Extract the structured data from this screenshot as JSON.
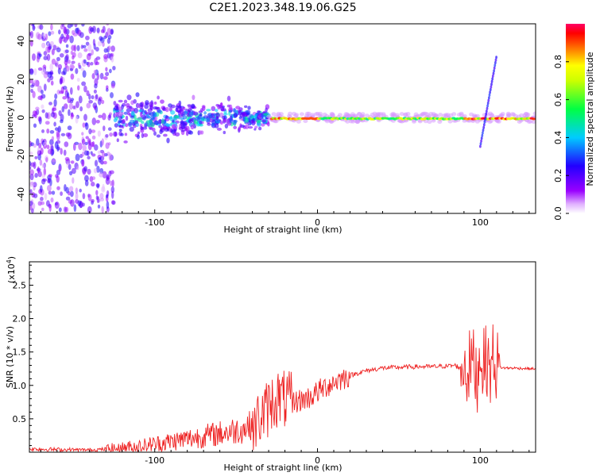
{
  "figure": {
    "title": "C2E1.2023.348.19.06.G25"
  },
  "chart_data": [
    {
      "type": "heatmap",
      "title": "C2E1.2023.348.19.06.G25",
      "xlabel": "Height of straight line (km)",
      "ylabel": "Frequency (Hz)",
      "xlim": [
        -177,
        134
      ],
      "ylim": [
        -50,
        49
      ],
      "xticks": [
        -100,
        0,
        100
      ],
      "yticks": [
        -40,
        -20,
        0,
        20,
        40
      ],
      "colorbar": {
        "label": "Normalized spectral amplitude",
        "range": [
          0,
          1
        ],
        "ticks": [
          0.0,
          0.2,
          0.4,
          0.6,
          0.8
        ],
        "colormap": [
          "#ffffff",
          "#9900ff",
          "#3300ff",
          "#00ccff",
          "#00ff66",
          "#ffff00",
          "#ff6600",
          "#ff0000",
          "#ff0066"
        ]
      },
      "features": [
        {
          "description_x_range": [
            -177,
            -125
          ],
          "spread_hz": 49
        },
        {
          "description_x_range": [
            -125,
            -30
          ],
          "spread_hz": 10
        },
        {
          "description_x_range": [
            -30,
            134
          ],
          "center_hz": 0,
          "peak_amplitude": 1.0
        },
        {
          "chirp_x": [
            100,
            110
          ],
          "chirp_y": [
            -15,
            32
          ]
        }
      ]
    },
    {
      "type": "line",
      "xlabel": "Height of straight line (km)",
      "ylabel": "SNR (10 * v/v)",
      "yscale_label": "(x10",
      "yscale_exp": "4",
      "y_multiplier": 10000,
      "xlim": [
        -177,
        134
      ],
      "ylim": [
        0,
        2.85
      ],
      "xticks": [
        -100,
        0,
        100
      ],
      "yticks": [
        0.5,
        1.0,
        1.5,
        2.0,
        2.5
      ],
      "series": [
        {
          "color": "#ee2222",
          "x": [
            -177,
            -160,
            -140,
            -120,
            -100,
            -80,
            -60,
            -45,
            -38,
            -32,
            -28,
            -24,
            -20,
            -15,
            -10,
            -5,
            0,
            5,
            10,
            20,
            30,
            40,
            50,
            60,
            70,
            80,
            85,
            88,
            90,
            92,
            95,
            98,
            100,
            102,
            104,
            106,
            108,
            110,
            112,
            115,
            120,
            130,
            134
          ],
          "y": [
            0.05,
            0.04,
            0.03,
            0.06,
            0.12,
            0.2,
            0.28,
            0.35,
            0.45,
            0.6,
            0.75,
            0.82,
            0.78,
            0.75,
            0.78,
            0.82,
            0.9,
            0.98,
            1.05,
            1.15,
            1.22,
            1.26,
            1.27,
            1.28,
            1.28,
            1.29,
            1.3,
            1.25,
            1.35,
            1.2,
            1.4,
            1.1,
            1.5,
            1.3,
            1.4,
            1.2,
            1.45,
            1.3,
            1.27,
            1.26,
            1.26,
            1.25,
            1.25
          ]
        }
      ]
    }
  ]
}
